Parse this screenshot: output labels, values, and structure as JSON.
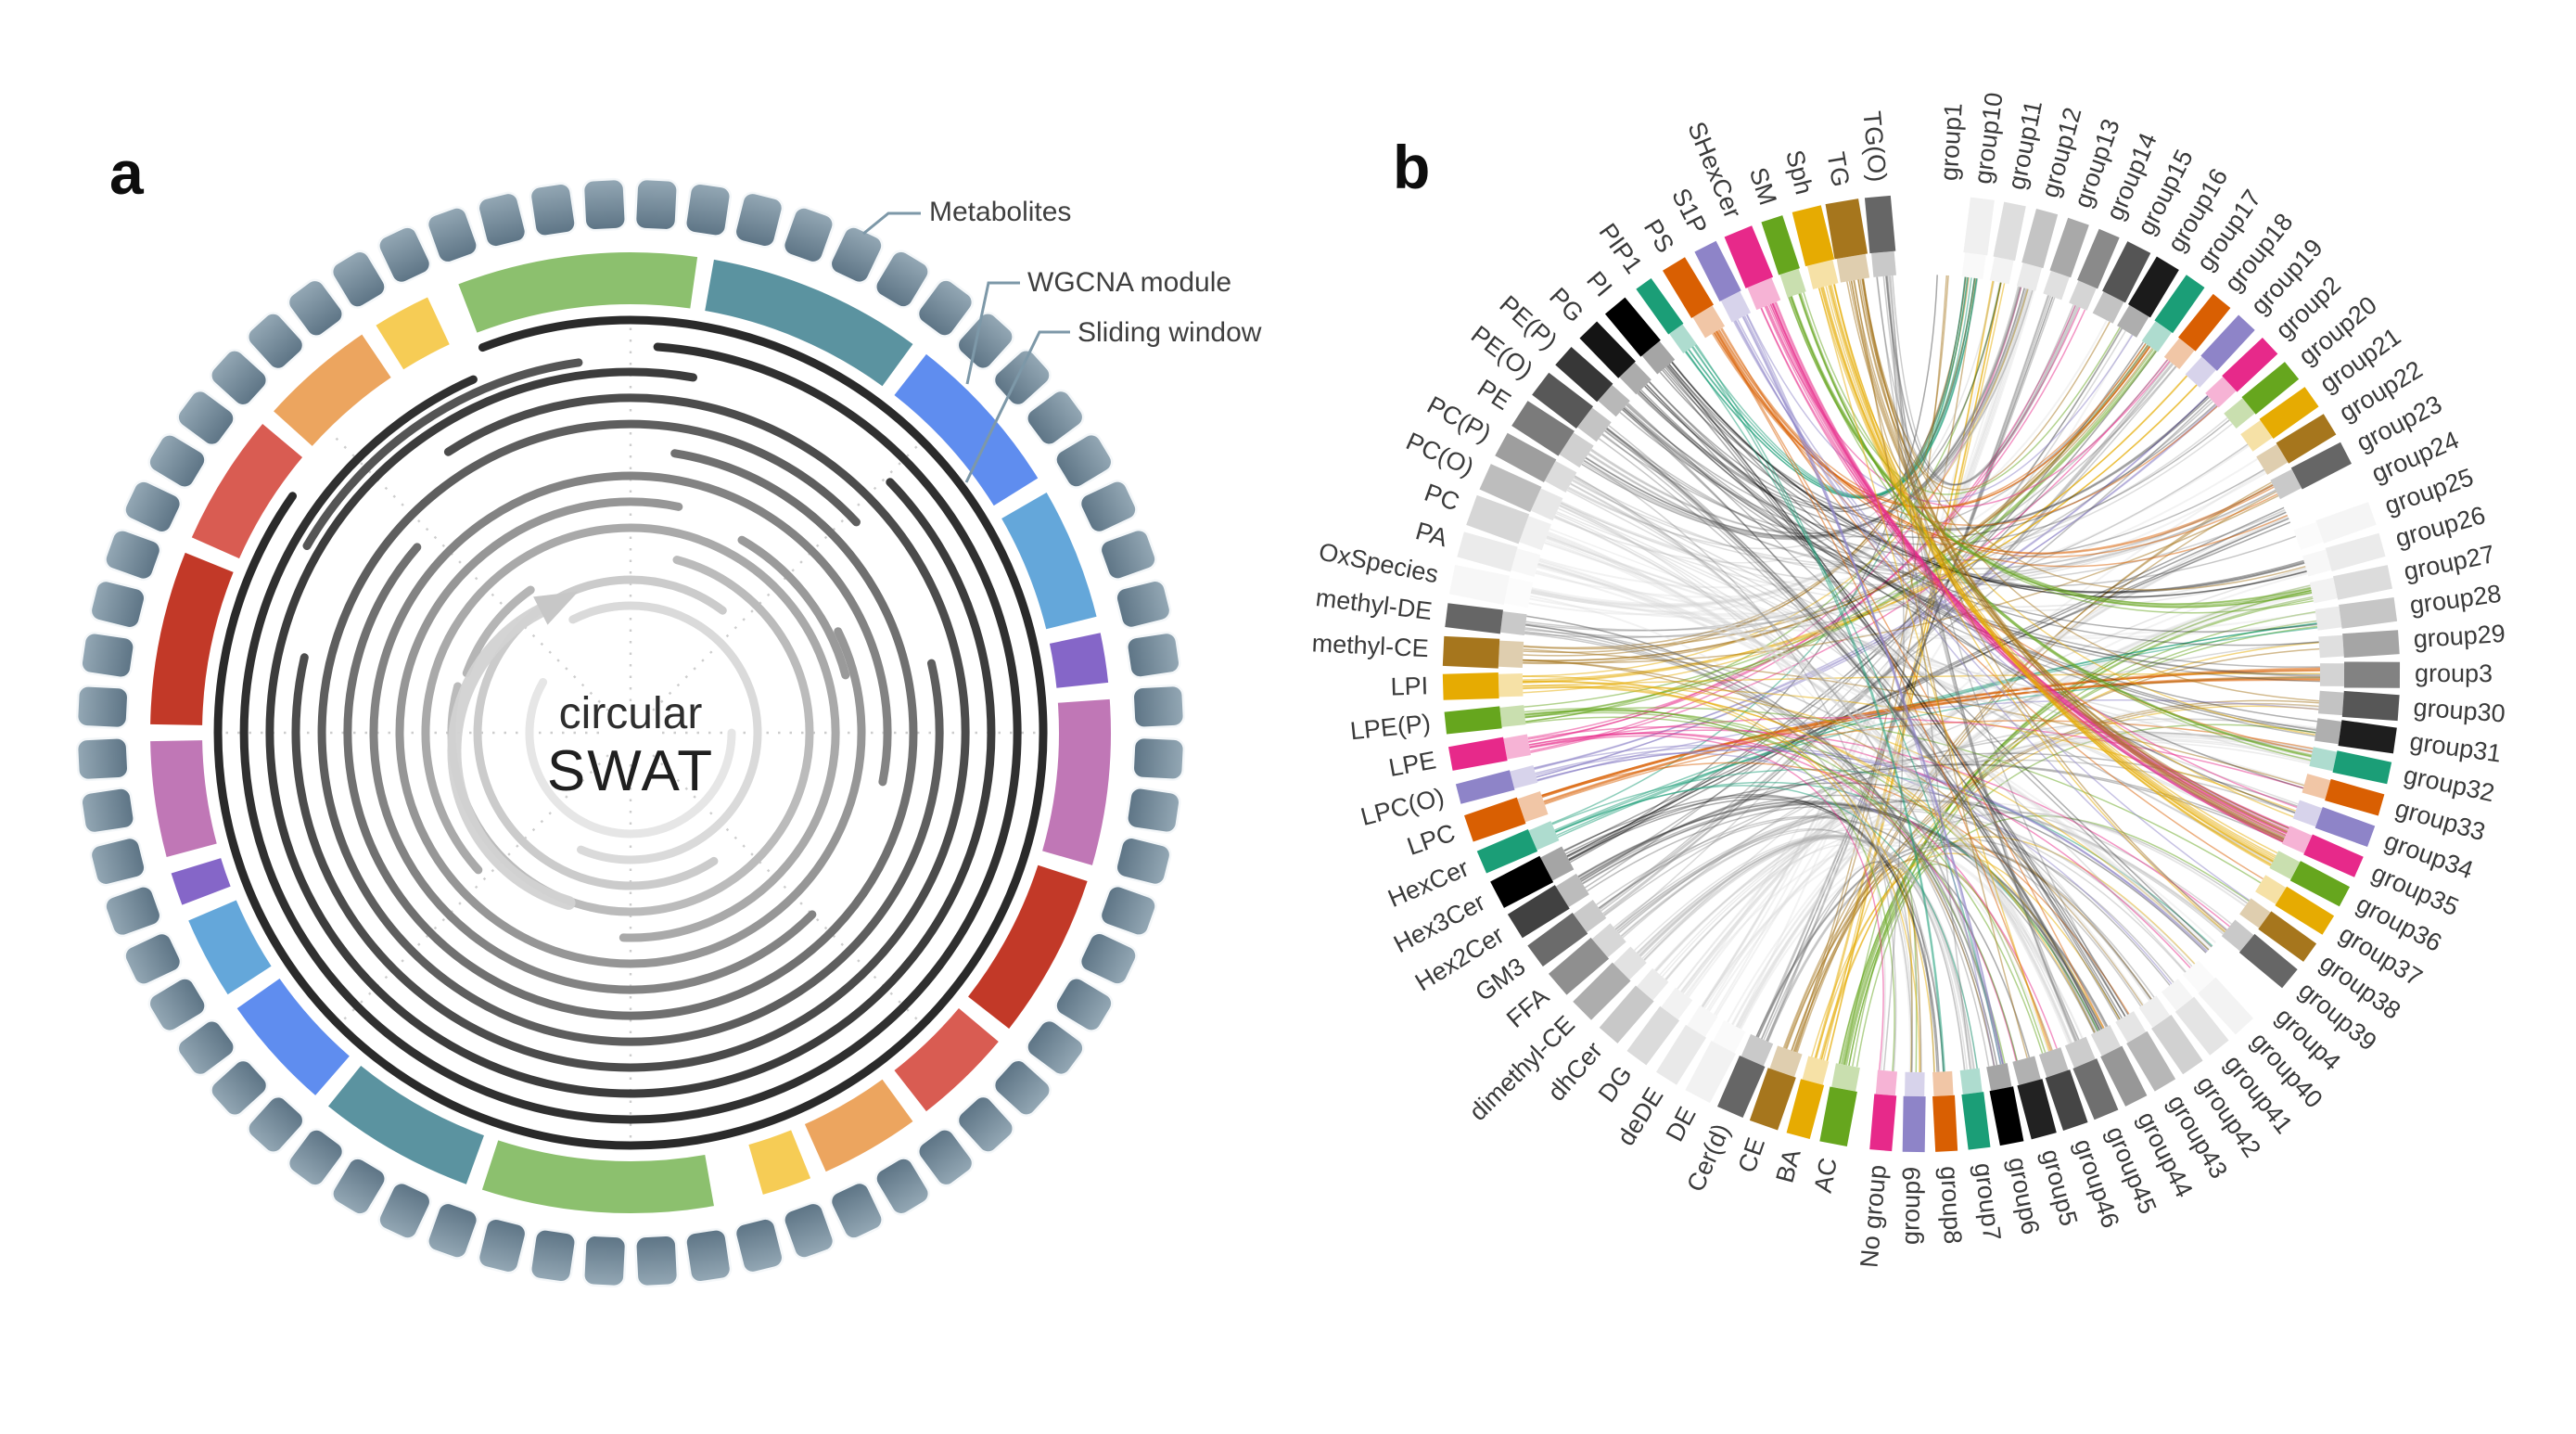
{
  "figure": {
    "panel_a_label": "a",
    "panel_b_label": "b"
  },
  "panel_a": {
    "center_text_line1": "circular",
    "center_text_line2": "SWAT",
    "annotations": {
      "metabolites": "Metabolites",
      "wgcna": "WGCNA module",
      "sliding": "Sliding window"
    },
    "metabolite_bead_count": 64,
    "bead_colors": {
      "light": "#94a8b5",
      "dark": "#5d7485",
      "stroke": "#f4f7f9"
    },
    "module_palette": {
      "green": "#8CC06E",
      "teal": "#5B93A0",
      "royal_blue": "#5F8DEF",
      "light_blue": "#64A7DA",
      "purple": "#8566C8",
      "plum": "#C077B6",
      "crimson": "#C23928",
      "salmon": "#D95C52",
      "orange": "#ECA55F",
      "yellow": "#F6CC55"
    },
    "module_segments": [
      {
        "color": "green",
        "start": 339,
        "end": 368
      },
      {
        "color": "teal",
        "start": 10,
        "end": 36
      },
      {
        "color": "royal_blue",
        "start": 38,
        "end": 58
      },
      {
        "color": "light_blue",
        "start": 60,
        "end": 76
      },
      {
        "color": "purple",
        "start": 78,
        "end": 84
      },
      {
        "color": "plum",
        "start": 86,
        "end": 106
      },
      {
        "color": "crimson",
        "start": 108,
        "end": 128
      },
      {
        "color": "salmon",
        "start": 130,
        "end": 142
      },
      {
        "color": "orange",
        "start": 144,
        "end": 156
      },
      {
        "color": "yellow",
        "start": 158,
        "end": 164
      },
      {
        "color": "green",
        "start": 170,
        "end": 198
      },
      {
        "color": "teal",
        "start": 200,
        "end": 219
      },
      {
        "color": "royal_blue",
        "start": 221,
        "end": 235
      },
      {
        "color": "light_blue",
        "start": 237,
        "end": 247
      },
      {
        "color": "purple",
        "start": 249,
        "end": 253
      },
      {
        "color": "plum",
        "start": 255,
        "end": 269
      },
      {
        "color": "crimson",
        "start": 271,
        "end": 292
      },
      {
        "color": "salmon",
        "start": 294,
        "end": 310
      },
      {
        "color": "orange",
        "start": 312,
        "end": 326
      },
      {
        "color": "yellow",
        "start": 328,
        "end": 335
      }
    ],
    "sliding_arcs": [
      {
        "r": 445,
        "color": "#2a2a2a",
        "gap_center": 322,
        "gap_size": 34
      },
      {
        "r": 417,
        "color": "#303030",
        "gap_center": 350,
        "gap_size": 28
      },
      {
        "r": 389,
        "color": "#3c3c3c",
        "gap_center": 28,
        "gap_size": 36
      },
      {
        "r": 361,
        "color": "#4c4c4c",
        "gap_center": 305,
        "gap_size": 44
      },
      {
        "r": 333,
        "color": "#5e5e5e",
        "gap_center": 62,
        "gap_size": 30
      },
      {
        "r": 305,
        "color": "#707070",
        "gap_center": 340,
        "gap_size": 58
      },
      {
        "r": 277,
        "color": "#838383",
        "gap_center": 118,
        "gap_size": 34
      },
      {
        "r": 249,
        "color": "#969696",
        "gap_center": 38,
        "gap_size": 52
      },
      {
        "r": 221,
        "color": "#a9a9a9",
        "gap_center": 205,
        "gap_size": 46
      },
      {
        "r": 193,
        "color": "#bbbbbb",
        "gap_center": 330,
        "gap_size": 90
      },
      {
        "r": 165,
        "color": "#cbcbcb",
        "gap_center": 92,
        "gap_size": 110
      },
      {
        "r": 137,
        "color": "#dadada",
        "gap_center": 268,
        "gap_size": 130
      },
      {
        "r": 109,
        "color": "#e6e6e6",
        "gap_center": 15,
        "gap_size": 150
      }
    ],
    "arc_fragments": [
      {
        "r": 403,
        "start": 300,
        "end": 352,
        "color": "#555555"
      },
      {
        "r": 240,
        "start": 30,
        "end": 75,
        "color": "#9a9a9a"
      },
      {
        "r": 188,
        "start": 290,
        "end": 325,
        "color": "#b5b5b5"
      }
    ]
  },
  "panel_b": {
    "lipid_classes": [
      {
        "label": "AC",
        "color": "#66A61E",
        "w": 30
      },
      {
        "label": "BA",
        "color": "#E6AB02",
        "w": 26
      },
      {
        "label": "CE",
        "color": "#A6761D",
        "w": 32
      },
      {
        "label": "Cer(d)",
        "color": "#666666",
        "w": 30
      },
      {
        "label": "DE",
        "color": "#F2F2F2",
        "w": 30
      },
      {
        "label": "deDE",
        "color": "#E9E9E9",
        "w": 26
      },
      {
        "label": "DG",
        "color": "#DBDBDB",
        "w": 26
      },
      {
        "label": "dhCer",
        "color": "#C8C8C8",
        "w": 26
      },
      {
        "label": "dimethyl-CE",
        "color": "#ADADAD",
        "w": 28
      },
      {
        "label": "FFA",
        "color": "#8F8F8F",
        "w": 30
      },
      {
        "label": "GM3",
        "color": "#6B6B6B",
        "w": 28
      },
      {
        "label": "Hex2Cer",
        "color": "#414141",
        "w": 30
      },
      {
        "label": "Hex3Cer",
        "color": "#000000",
        "w": 32
      },
      {
        "label": "HexCer",
        "color": "#1B9E77",
        "w": 26
      },
      {
        "label": "LPC",
        "color": "#D95F02",
        "w": 30
      },
      {
        "label": "LPC(O)",
        "color": "#8E84C8",
        "w": 22
      },
      {
        "label": "LPE",
        "color": "#E7298A",
        "w": 26
      },
      {
        "label": "LPE(P)",
        "color": "#66A61E",
        "w": 24
      },
      {
        "label": "LPI",
        "color": "#E6AB02",
        "w": 28
      },
      {
        "label": "methyl-CE",
        "color": "#A6761D",
        "w": 32
      },
      {
        "label": "methyl-DE",
        "color": "#666666",
        "w": 26
      },
      {
        "label": "OxSpecies",
        "color": "#F7F7F7",
        "w": 32
      },
      {
        "label": "PA",
        "color": "#EBEBEB",
        "w": 28
      },
      {
        "label": "PC",
        "color": "#D6D6D6",
        "w": 34
      },
      {
        "label": "PC(O)",
        "color": "#BDBDBD",
        "w": 30
      },
      {
        "label": "PC(P)",
        "color": "#9E9E9E",
        "w": 28
      },
      {
        "label": "PE",
        "color": "#7B7B7B",
        "w": 32
      },
      {
        "label": "PE(O)",
        "color": "#585858",
        "w": 30
      },
      {
        "label": "PE(P)",
        "color": "#373737",
        "w": 26
      },
      {
        "label": "PG",
        "color": "#141414",
        "w": 26
      },
      {
        "label": "PI",
        "color": "#000000",
        "w": 28
      },
      {
        "label": "PIP1",
        "color": "#1B9E77",
        "w": 20
      },
      {
        "label": "PS",
        "color": "#D95F02",
        "w": 28
      },
      {
        "label": "S1P",
        "color": "#8E84C8",
        "w": 26
      },
      {
        "label": "SHexCer",
        "color": "#E7298A",
        "w": 32
      },
      {
        "label": "SM",
        "color": "#66A61E",
        "w": 24
      },
      {
        "label": "Sph",
        "color": "#E6AB02",
        "w": 32
      },
      {
        "label": "TG",
        "color": "#A6761D",
        "w": 36
      },
      {
        "label": "TG(O)",
        "color": "#666666",
        "w": 28
      }
    ],
    "groups": [
      {
        "label": "group1",
        "color": "#FFFFFF",
        "w": 26
      },
      {
        "label": "group10",
        "color": "#F0F0F0",
        "w": 26
      },
      {
        "label": "group11",
        "color": "#DEDEDE",
        "w": 24
      },
      {
        "label": "group12",
        "color": "#C4C4C4",
        "w": 24
      },
      {
        "label": "group13",
        "color": "#A9A9A9",
        "w": 24
      },
      {
        "label": "group14",
        "color": "#8A8A8A",
        "w": 24
      },
      {
        "label": "group15",
        "color": "#555555",
        "w": 28
      },
      {
        "label": "group16",
        "color": "#1B1B1B",
        "w": 28
      },
      {
        "label": "group17",
        "color": "#1B9E77",
        "w": 24
      },
      {
        "label": "group18",
        "color": "#D95F02",
        "w": 24
      },
      {
        "label": "group19",
        "color": "#8E84C8",
        "w": 24
      },
      {
        "label": "group2",
        "color": "#E7298A",
        "w": 24
      },
      {
        "label": "group20",
        "color": "#66A61E",
        "w": 24
      },
      {
        "label": "group21",
        "color": "#E6AB02",
        "w": 26
      },
      {
        "label": "group22",
        "color": "#A6761D",
        "w": 26
      },
      {
        "label": "group23",
        "color": "#666666",
        "w": 26
      },
      {
        "label": "group24",
        "color": "#FFFFFF",
        "w": 26
      },
      {
        "label": "group25",
        "color": "#F5F5F5",
        "w": 26
      },
      {
        "label": "group26",
        "color": "#EBEBEB",
        "w": 26
      },
      {
        "label": "group27",
        "color": "#DCDCDC",
        "w": 26
      },
      {
        "label": "group28",
        "color": "#C6C6C6",
        "w": 26
      },
      {
        "label": "group29",
        "color": "#A5A5A5",
        "w": 26
      },
      {
        "label": "group3",
        "color": "#828282",
        "w": 28
      },
      {
        "label": "group30",
        "color": "#575757",
        "w": 28
      },
      {
        "label": "group31",
        "color": "#1E1E1E",
        "w": 28
      },
      {
        "label": "group32",
        "color": "#1B9E77",
        "w": 24
      },
      {
        "label": "group33",
        "color": "#D95F02",
        "w": 24
      },
      {
        "label": "group34",
        "color": "#8E84C8",
        "w": 24
      },
      {
        "label": "group35",
        "color": "#E7298A",
        "w": 24
      },
      {
        "label": "group36",
        "color": "#66A61E",
        "w": 24
      },
      {
        "label": "group37",
        "color": "#E6AB02",
        "w": 24
      },
      {
        "label": "group38",
        "color": "#A6761D",
        "w": 24
      },
      {
        "label": "group39",
        "color": "#666666",
        "w": 26
      },
      {
        "label": "group4",
        "color": "#FFFFFF",
        "w": 26
      },
      {
        "label": "group40",
        "color": "#F3F3F3",
        "w": 26
      },
      {
        "label": "group41",
        "color": "#E4E4E4",
        "w": 26
      },
      {
        "label": "group42",
        "color": "#D1D1D1",
        "w": 26
      },
      {
        "label": "group43",
        "color": "#B7B7B7",
        "w": 26
      },
      {
        "label": "group44",
        "color": "#979797",
        "w": 26
      },
      {
        "label": "group45",
        "color": "#6F6F6F",
        "w": 28
      },
      {
        "label": "group46",
        "color": "#454545",
        "w": 28
      },
      {
        "label": "group5",
        "color": "#222222",
        "w": 28
      },
      {
        "label": "group6",
        "color": "#000000",
        "w": 26
      },
      {
        "label": "group7",
        "color": "#1B9E77",
        "w": 24
      },
      {
        "label": "group8",
        "color": "#D95F02",
        "w": 24
      },
      {
        "label": "group9",
        "color": "#8E84C8",
        "w": 24
      },
      {
        "label": "No group",
        "color": "#E7298A",
        "w": 24
      }
    ]
  },
  "chart_data": [
    {
      "type": "chord",
      "title": "",
      "panel": "a",
      "description": "circular SWAT schematic with three annotated rings",
      "rings": [
        "Metabolites",
        "WGCNA module",
        "Sliding window"
      ],
      "metabolite_count": 64,
      "center_label": "circular SWAT",
      "module_color_order": [
        "green",
        "teal",
        "royal_blue",
        "light_blue",
        "purple",
        "plum",
        "crimson",
        "salmon",
        "orange",
        "yellow"
      ]
    },
    {
      "type": "chord",
      "title": "",
      "panel": "b",
      "description": "chord diagram linking lipid classes to WGCNA groups",
      "left_categories": [
        "AC",
        "BA",
        "CE",
        "Cer(d)",
        "DE",
        "deDE",
        "DG",
        "dhCer",
        "dimethyl-CE",
        "FFA",
        "GM3",
        "Hex2Cer",
        "Hex3Cer",
        "HexCer",
        "LPC",
        "LPC(O)",
        "LPE",
        "LPE(P)",
        "LPI",
        "methyl-CE",
        "methyl-DE",
        "OxSpecies",
        "PA",
        "PC",
        "PC(O)",
        "PC(P)",
        "PE",
        "PE(O)",
        "PE(P)",
        "PG",
        "PI",
        "PIP1",
        "PS",
        "S1P",
        "SHexCer",
        "SM",
        "Sph",
        "TG",
        "TG(O)"
      ],
      "right_categories": [
        "group1",
        "group10",
        "group11",
        "group12",
        "group13",
        "group14",
        "group15",
        "group16",
        "group17",
        "group18",
        "group19",
        "group2",
        "group20",
        "group21",
        "group22",
        "group23",
        "group24",
        "group25",
        "group26",
        "group27",
        "group28",
        "group29",
        "group3",
        "group30",
        "group31",
        "group32",
        "group33",
        "group34",
        "group35",
        "group36",
        "group37",
        "group38",
        "group39",
        "group4",
        "group40",
        "group41",
        "group42",
        "group43",
        "group44",
        "group45",
        "group46",
        "group5",
        "group6",
        "group7",
        "group8",
        "group9",
        "No group"
      ],
      "legend_position": "none",
      "grid": false
    }
  ]
}
